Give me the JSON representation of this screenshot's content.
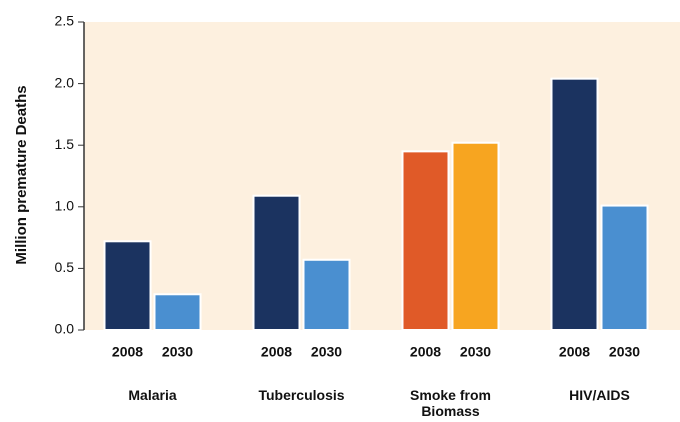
{
  "chart_data": {
    "type": "bar",
    "y_label": "Million premature Deaths",
    "categories": [
      "Malaria",
      "Tuberculosis",
      "Smoke from Biomass",
      "HIV/AIDS"
    ],
    "series": [
      {
        "name": "2008",
        "values": [
          0.72,
          1.09,
          1.45,
          2.04
        ],
        "colors": [
          "#1b3360",
          "#1b3360",
          "#e05a28",
          "#1b3360"
        ]
      },
      {
        "name": "2030",
        "values": [
          0.29,
          0.57,
          1.52,
          1.01
        ],
        "colors": [
          "#4a8fd0",
          "#4a8fd0",
          "#f7a520",
          "#4a8fd0"
        ]
      }
    ],
    "ylim": [
      0,
      2.5
    ],
    "yticks": [
      {
        "value": 0,
        "label": "0.0"
      },
      0.5,
      {
        "value": 1,
        "label": "1.0"
      },
      1.5,
      {
        "value": 2,
        "label": "2.0"
      },
      2.5
    ],
    "background": "#fdf0df"
  }
}
